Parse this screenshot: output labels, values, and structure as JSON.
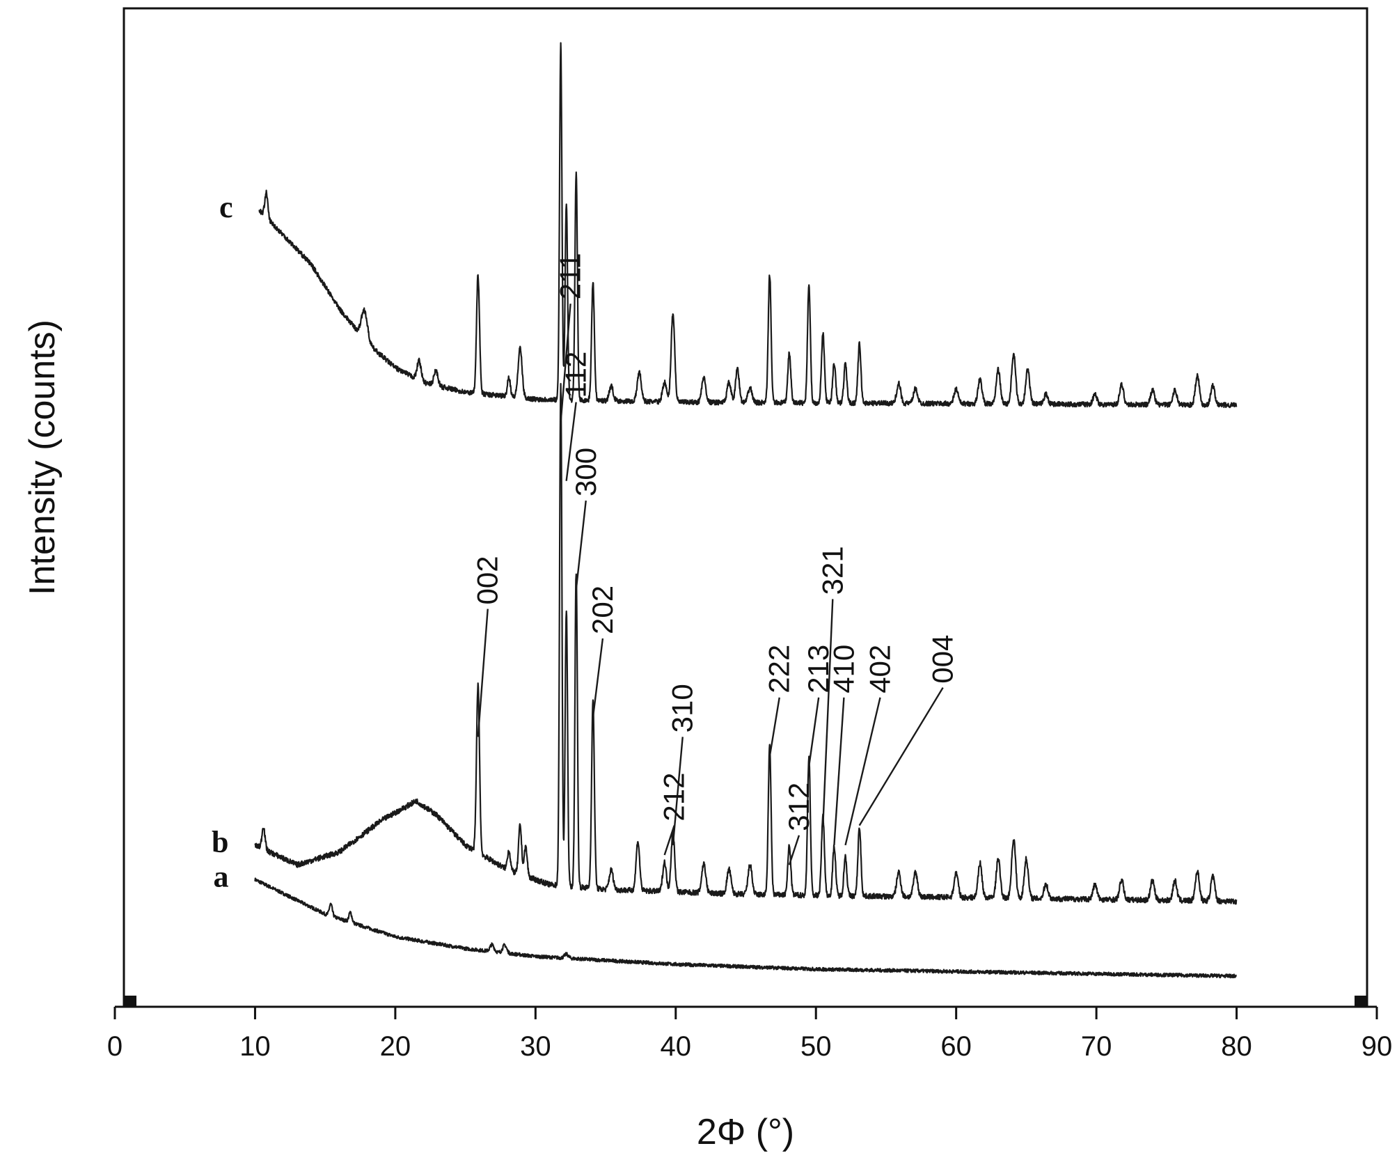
{
  "chart_data": {
    "type": "line",
    "title": "",
    "xlabel": "2Φ (°)",
    "ylabel": "Intensity (counts)",
    "xlim": [
      0,
      90
    ],
    "ylim": [
      0,
      100
    ],
    "x_ticks": [
      "0",
      "10",
      "20",
      "30",
      "40",
      "50",
      "60",
      "70",
      "80",
      "90"
    ],
    "y_ticks_shown": false,
    "grid": false,
    "legend": "none",
    "x_range_measured": [
      10,
      80
    ],
    "series": [
      {
        "name": "a",
        "baseline": 1.5,
        "background": [
          [
            10,
            10
          ],
          [
            15,
            6.5
          ],
          [
            20,
            4.2
          ],
          [
            25,
            3
          ],
          [
            30,
            2.2
          ],
          [
            40,
            1.4
          ],
          [
            50,
            0.9
          ],
          [
            80,
            0.2
          ]
        ],
        "peaks": [
          [
            15.4,
            1.2,
            0.15
          ],
          [
            16.8,
            1.0,
            0.15
          ],
          [
            26.9,
            0.7,
            0.2
          ],
          [
            27.8,
            0.8,
            0.2
          ],
          [
            32.2,
            0.4,
            0.2
          ]
        ],
        "noise": 0.35
      },
      {
        "name": "b",
        "baseline": 8.5,
        "background": [
          [
            10,
            6.5
          ],
          [
            13,
            4.5
          ],
          [
            16,
            5.8
          ],
          [
            19,
            9.0
          ],
          [
            21.5,
            11.0
          ],
          [
            23,
            9.5
          ],
          [
            25,
            6.5
          ],
          [
            28,
            4.0
          ],
          [
            31,
            2.5
          ],
          [
            35,
            2.0
          ],
          [
            45,
            1.5
          ],
          [
            80,
            0.8
          ]
        ],
        "peaks": [
          [
            10.6,
            2.3,
            0.15
          ],
          [
            25.9,
            17,
            0.15
          ],
          [
            28.1,
            2.0,
            0.15
          ],
          [
            28.9,
            5.0,
            0.15
          ],
          [
            29.3,
            3.0,
            0.15
          ],
          [
            31.8,
            51,
            0.12
          ],
          [
            32.2,
            28,
            0.12
          ],
          [
            32.9,
            32,
            0.12
          ],
          [
            34.1,
            19,
            0.14
          ],
          [
            35.4,
            2.0,
            0.2
          ],
          [
            37.3,
            5.0,
            0.18
          ],
          [
            39.2,
            3.0,
            0.18
          ],
          [
            39.8,
            6.0,
            0.18
          ],
          [
            42.0,
            3.0,
            0.2
          ],
          [
            43.8,
            2.5,
            0.2
          ],
          [
            45.3,
            3.0,
            0.2
          ],
          [
            46.7,
            15,
            0.14
          ],
          [
            48.1,
            5.0,
            0.15
          ],
          [
            49.5,
            14,
            0.14
          ],
          [
            50.5,
            8.0,
            0.15
          ],
          [
            51.3,
            5.0,
            0.15
          ],
          [
            52.1,
            4.0,
            0.15
          ],
          [
            53.1,
            7.0,
            0.15
          ],
          [
            55.9,
            2.5,
            0.2
          ],
          [
            57.1,
            2.5,
            0.2
          ],
          [
            60.0,
            2.5,
            0.2
          ],
          [
            61.7,
            3.5,
            0.2
          ],
          [
            63.0,
            4.0,
            0.2
          ],
          [
            64.1,
            6.0,
            0.2
          ],
          [
            65.0,
            4.0,
            0.2
          ],
          [
            66.4,
            1.5,
            0.2
          ],
          [
            69.9,
            1.5,
            0.2
          ],
          [
            71.8,
            2.0,
            0.2
          ],
          [
            74.0,
            2.0,
            0.2
          ],
          [
            75.6,
            2.0,
            0.2
          ],
          [
            77.2,
            3.0,
            0.2
          ],
          [
            78.3,
            2.5,
            0.2
          ]
        ],
        "noise": 0.55
      },
      {
        "name": "c",
        "baseline": 59.5,
        "background": [
          [
            10.3,
            20
          ],
          [
            12,
            17.5
          ],
          [
            14,
            14.5
          ],
          [
            16,
            10
          ],
          [
            18,
            6.5
          ],
          [
            20,
            4
          ],
          [
            22,
            2.5
          ],
          [
            25,
            1.5
          ],
          [
            30,
            0.8
          ],
          [
            40,
            0.5
          ],
          [
            80,
            0.2
          ]
        ],
        "peaks": [
          [
            10.8,
            2.5,
            0.15
          ],
          [
            17.8,
            3.0,
            0.3
          ],
          [
            21.7,
            2.0,
            0.2
          ],
          [
            22.9,
            1.5,
            0.2
          ],
          [
            25.9,
            12,
            0.15
          ],
          [
            28.1,
            2.0,
            0.15
          ],
          [
            28.9,
            5.0,
            0.2
          ],
          [
            31.8,
            36,
            0.12
          ],
          [
            32.2,
            20,
            0.12
          ],
          [
            32.9,
            23,
            0.12
          ],
          [
            34.1,
            12,
            0.14
          ],
          [
            35.4,
            1.5,
            0.2
          ],
          [
            37.4,
            3.0,
            0.2
          ],
          [
            39.2,
            2.0,
            0.2
          ],
          [
            39.8,
            9.0,
            0.18
          ],
          [
            42.0,
            2.5,
            0.2
          ],
          [
            43.8,
            2.0,
            0.2
          ],
          [
            44.4,
            3.5,
            0.18
          ],
          [
            45.3,
            1.5,
            0.2
          ],
          [
            46.7,
            13,
            0.14
          ],
          [
            48.1,
            5.0,
            0.15
          ],
          [
            49.5,
            12,
            0.14
          ],
          [
            50.5,
            7.0,
            0.15
          ],
          [
            51.3,
            4.0,
            0.15
          ],
          [
            52.1,
            4.0,
            0.15
          ],
          [
            53.1,
            6.0,
            0.15
          ],
          [
            55.9,
            2.0,
            0.2
          ],
          [
            57.1,
            1.5,
            0.2
          ],
          [
            60.0,
            1.5,
            0.2
          ],
          [
            61.7,
            2.5,
            0.2
          ],
          [
            63.0,
            3.5,
            0.2
          ],
          [
            64.1,
            5.0,
            0.2
          ],
          [
            65.1,
            3.5,
            0.2
          ],
          [
            66.4,
            1.0,
            0.2
          ],
          [
            69.9,
            1.0,
            0.2
          ],
          [
            71.8,
            2.0,
            0.2
          ],
          [
            74.0,
            1.5,
            0.2
          ],
          [
            75.6,
            1.5,
            0.2
          ],
          [
            77.2,
            3.0,
            0.2
          ],
          [
            78.3,
            2.0,
            0.2
          ]
        ],
        "noise": 0.5
      }
    ],
    "annotations": [
      {
        "text": "002",
        "x": 25.9,
        "y": 26,
        "label_y": 39
      },
      {
        "text": "211",
        "x": 31.8,
        "y": 58,
        "label_y": 70
      },
      {
        "text": "112",
        "x": 32.2,
        "y": 52,
        "label_y": 60
      },
      {
        "text": "300",
        "x": 32.9,
        "y": 41,
        "label_y": 50
      },
      {
        "text": "202",
        "x": 34.1,
        "y": 28,
        "label_y": 36
      },
      {
        "text": "212",
        "x": 39.2,
        "y": 14,
        "label_y": 17
      },
      {
        "text": "310",
        "x": 39.8,
        "y": 15,
        "label_y": 26
      },
      {
        "text": "222",
        "x": 46.7,
        "y": 24,
        "label_y": 30
      },
      {
        "text": "312",
        "x": 48.1,
        "y": 13,
        "label_y": 16
      },
      {
        "text": "213",
        "x": 49.5,
        "y": 23,
        "label_y": 30
      },
      {
        "text": "321",
        "x": 50.5,
        "y": 17,
        "label_y": 40
      },
      {
        "text": "410",
        "x": 51.3,
        "y": 15,
        "label_y": 30
      },
      {
        "text": "402",
        "x": 52.1,
        "y": 15,
        "label_y": 30
      },
      {
        "text": "004",
        "x": 53.1,
        "y": 17,
        "label_y": 31
      }
    ]
  }
}
